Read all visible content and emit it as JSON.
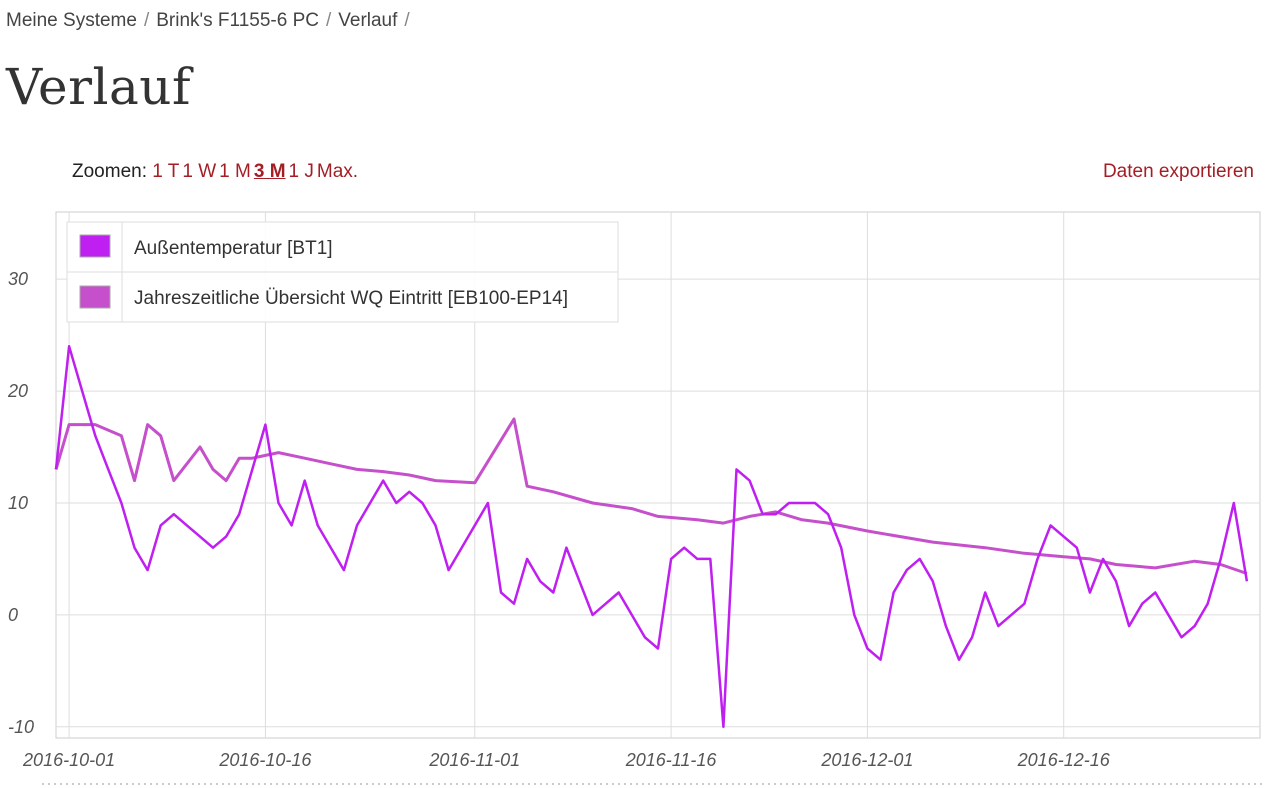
{
  "breadcrumb": {
    "items": [
      "Meine Systeme",
      "Brink's F1155-6 PC",
      "Verlauf"
    ],
    "separator": "/"
  },
  "page": {
    "title": "Verlauf"
  },
  "zoom": {
    "label": "Zoomen:",
    "options": [
      "1 T",
      "1 W",
      "1 M",
      "3 M",
      "1 J",
      "Max."
    ],
    "active": "3 M"
  },
  "export": {
    "label": "Daten exportieren"
  },
  "colors": {
    "link": "#a31e25",
    "series1": "#bf1ff0",
    "series2": "#c64fcc",
    "grid": "#dddddd"
  },
  "chart_data": {
    "type": "line",
    "y_ticks": [
      -10,
      0,
      10,
      20,
      30
    ],
    "ylim": [
      -11,
      36
    ],
    "x_ticks": [
      "2016-10-01",
      "2016-10-16",
      "2016-11-01",
      "2016-11-16",
      "2016-12-01",
      "2016-12-16"
    ],
    "xlim": [
      "2016-09-30",
      "2016-12-31"
    ],
    "grid": true,
    "legend": "top-left",
    "series": [
      {
        "name": "Außentemperatur [BT1]",
        "color": "#bf1ff0",
        "x": [
          "2016-09-30",
          "2016-10-01",
          "2016-10-02",
          "2016-10-03",
          "2016-10-04",
          "2016-10-05",
          "2016-10-06",
          "2016-10-07",
          "2016-10-08",
          "2016-10-09",
          "2016-10-10",
          "2016-10-11",
          "2016-10-12",
          "2016-10-13",
          "2016-10-14",
          "2016-10-15",
          "2016-10-16",
          "2016-10-17",
          "2016-10-18",
          "2016-10-19",
          "2016-10-20",
          "2016-10-21",
          "2016-10-22",
          "2016-10-23",
          "2016-10-24",
          "2016-10-25",
          "2016-10-26",
          "2016-10-27",
          "2016-10-28",
          "2016-10-29",
          "2016-10-30",
          "2016-10-31",
          "2016-11-01",
          "2016-11-02",
          "2016-11-03",
          "2016-11-04",
          "2016-11-05",
          "2016-11-06",
          "2016-11-07",
          "2016-11-08",
          "2016-11-09",
          "2016-11-10",
          "2016-11-11",
          "2016-11-12",
          "2016-11-13",
          "2016-11-14",
          "2016-11-15",
          "2016-11-16",
          "2016-11-17",
          "2016-11-18",
          "2016-11-19",
          "2016-11-20",
          "2016-11-21",
          "2016-11-22",
          "2016-11-23",
          "2016-11-24",
          "2016-11-25",
          "2016-11-26",
          "2016-11-27",
          "2016-11-28",
          "2016-11-29",
          "2016-11-30",
          "2016-12-01",
          "2016-12-02",
          "2016-12-03",
          "2016-12-04",
          "2016-12-05",
          "2016-12-06",
          "2016-12-07",
          "2016-12-08",
          "2016-12-09",
          "2016-12-10",
          "2016-12-11",
          "2016-12-12",
          "2016-12-13",
          "2016-12-14",
          "2016-12-15",
          "2016-12-16",
          "2016-12-17",
          "2016-12-18",
          "2016-12-19",
          "2016-12-20",
          "2016-12-21",
          "2016-12-22",
          "2016-12-23",
          "2016-12-24",
          "2016-12-25",
          "2016-12-26",
          "2016-12-27",
          "2016-12-28",
          "2016-12-29",
          "2016-12-30"
        ],
        "y": [
          13,
          24,
          20,
          16,
          13,
          10,
          6,
          4,
          8,
          9,
          8,
          7,
          6,
          7,
          9,
          13,
          17,
          10,
          8,
          12,
          8,
          6,
          4,
          8,
          10,
          12,
          10,
          11,
          10,
          8,
          4,
          6,
          8,
          10,
          2,
          1,
          5,
          3,
          2,
          6,
          3,
          0,
          1,
          2,
          0,
          -2,
          -3,
          5,
          6,
          5,
          5,
          -10,
          13,
          12,
          9,
          9,
          10,
          10,
          10,
          9,
          6,
          0,
          -3,
          -4,
          2,
          4,
          5,
          3,
          -1,
          -4,
          -2,
          2,
          -1,
          0,
          1,
          5,
          8,
          7,
          6,
          2,
          5,
          3,
          -1,
          1,
          2,
          0,
          -2,
          -1,
          1,
          5,
          10,
          3
        ]
      },
      {
        "name": "Jahreszeitliche Übersicht WQ Eintritt [EB100-EP14]",
        "color": "#c64fcc",
        "x": [
          "2016-09-30",
          "2016-10-01",
          "2016-10-03",
          "2016-10-05",
          "2016-10-06",
          "2016-10-07",
          "2016-10-08",
          "2016-10-09",
          "2016-10-11",
          "2016-10-12",
          "2016-10-13",
          "2016-10-14",
          "2016-10-15",
          "2016-10-17",
          "2016-10-19",
          "2016-10-21",
          "2016-10-23",
          "2016-10-25",
          "2016-10-27",
          "2016-10-29",
          "2016-11-01",
          "2016-11-04",
          "2016-11-05",
          "2016-11-07",
          "2016-11-10",
          "2016-11-13",
          "2016-11-15",
          "2016-11-18",
          "2016-11-20",
          "2016-11-22",
          "2016-11-24",
          "2016-11-26",
          "2016-11-28",
          "2016-12-01",
          "2016-12-06",
          "2016-12-10",
          "2016-12-13",
          "2016-12-16",
          "2016-12-18",
          "2016-12-20",
          "2016-12-23",
          "2016-12-26",
          "2016-12-28",
          "2016-12-30"
        ],
        "y": [
          13,
          17,
          17,
          16,
          12,
          17,
          16,
          12,
          15,
          13,
          12,
          14,
          14,
          14.5,
          14,
          13.5,
          13,
          12.8,
          12.5,
          12,
          11.8,
          17.5,
          11.5,
          11,
          10,
          9.5,
          8.8,
          8.5,
          8.2,
          8.8,
          9.2,
          8.5,
          8.2,
          7.5,
          6.5,
          6,
          5.5,
          5.2,
          5,
          4.5,
          4.2,
          4.8,
          4.5,
          3.7
        ]
      }
    ]
  }
}
